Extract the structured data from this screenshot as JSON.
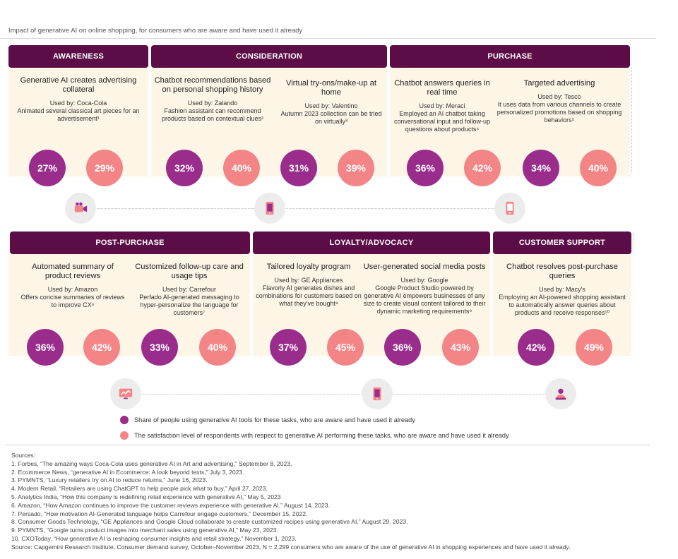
{
  "title": "Impact of generative AI on online shopping, for consumers who are aware and have used it already",
  "colors": {
    "header": "#5c0d47",
    "share": "#9a2d8c",
    "satisfaction": "#f48587",
    "band": "#fdf5e6"
  },
  "stages": [
    {
      "label": "AWARENESS"
    },
    {
      "label": "CONSIDERATION"
    },
    {
      "label": "PURCHASE"
    },
    {
      "label": "POST-PURCHASE"
    },
    {
      "label": "LOYALTY/ADVOCACY"
    },
    {
      "label": "CUSTOMER SUPPORT"
    }
  ],
  "cards": [
    {
      "title": "Generative AI creates advertising collateral",
      "used_by": "Used by: Coca-Cola",
      "desc": "Animated several classical art pieces for an advertisement¹",
      "share": "27%",
      "satisfaction": "29%"
    },
    {
      "title": "Chatbot recommendations based on personal shopping history",
      "used_by": "Used by: Zalando",
      "desc": "Fashion assistant can recommend products based on contextual clues²",
      "share": "32%",
      "satisfaction": "40%"
    },
    {
      "title": "Virtual try-ons/make-up at home",
      "used_by": "Used by: Valentino",
      "desc": "Autumn 2023 collection can be tried on virtually³",
      "share": "31%",
      "satisfaction": "39%"
    },
    {
      "title": "Chatbot answers queries in real time",
      "used_by": "Used by: Meraci",
      "desc": "Employed an AI chatbot taking conversational input and follow-up questions about products⁴",
      "share": "36%",
      "satisfaction": "42%"
    },
    {
      "title": "Targeted advertising",
      "used_by": "Used by: Tesco",
      "desc": "It uses data from various channels to create personalized promotions based on shopping behaviors⁵",
      "share": "34%",
      "satisfaction": "40%"
    },
    {
      "title": "Automated summary of product reviews",
      "used_by": "Used by: Amazon",
      "desc": "Offers concise summaries of reviews to improve CX⁶",
      "share": "36%",
      "satisfaction": "42%"
    },
    {
      "title": "Customized follow-up care and usage tips",
      "used_by": "Used by: Carrefour",
      "desc": "Perfado AI-generated messaging to hyper-personalize the language for customers⁷",
      "share": "33%",
      "satisfaction": "40%"
    },
    {
      "title": "Tailored loyalty program",
      "used_by": "Used by: GE Appliances",
      "desc": "Flavorly AI generates dishes and combinations for customers based on what they've bought⁸",
      "share": "37%",
      "satisfaction": "45%"
    },
    {
      "title": "User-generated social media posts",
      "used_by": "Used by: Google",
      "desc": "Google Product Studio powered by generative AI empowers businesses of any size to create visual content tailored to their dynamic marketing requirements⁹",
      "share": "36%",
      "satisfaction": "43%"
    },
    {
      "title": "Chatbot resolves post-purchase queries",
      "used_by": "Used by: Macy's",
      "desc": "Employing an AI-powered shopping assistant to automatically answer queries about products and receive responses¹⁰",
      "share": "42%",
      "satisfaction": "49%"
    }
  ],
  "chart_data": {
    "type": "bar",
    "categories": [
      "Generative AI creates advertising collateral",
      "Chatbot recommendations based on personal shopping history",
      "Virtual try-ons/make-up at home",
      "Chatbot answers queries in real time",
      "Targeted advertising",
      "Automated summary of product reviews",
      "Customized follow-up care and usage tips",
      "Tailored loyalty program",
      "User-generated social media posts",
      "Chatbot resolves post-purchase queries"
    ],
    "series": [
      {
        "name": "Share of people using generative AI tools for these tasks, who are aware and have used it already",
        "values": [
          27,
          32,
          31,
          36,
          34,
          36,
          33,
          37,
          36,
          42
        ]
      },
      {
        "name": "The satisfaction level of respondents with respect to generative AI performing these tasks, who are aware and have used it already",
        "values": [
          29,
          40,
          39,
          42,
          40,
          42,
          40,
          45,
          43,
          49
        ]
      }
    ],
    "title": "Impact of generative AI on online shopping, for consumers who are aware and have used it already"
  },
  "icons": [
    "video-camera-icon",
    "mobile-phone-icon",
    "smartphone-icon",
    "monitor-chart-icon",
    "mobile-phone-icon",
    "customer-agent-icon"
  ],
  "legend": {
    "share": "Share of people using generative AI tools for these tasks, who are aware and have used it already",
    "satisfaction": "The satisfaction level of respondents with respect to generative AI performing these tasks, who are aware and have used it already"
  },
  "sources": [
    "Sources:",
    "1. Forbes, “The amazing ways Coca-Cola uses generative AI in Art and advertising,” September 8, 2023.",
    "2. Ecommerce News, “generative AI in Ecommerce: A look beyond texts,” July 3, 2023.",
    "3. PYMNTS, “Luxury retailers try on AI to reduce returns,” June 16, 2023.",
    "4. Modern Retail, “Retailers are using ChatGPT to help people pick what to buy,” April 27, 2023.",
    "5. Analytics India, “How this company is redefining retail experience with generative AI,” May 5, 2023",
    "6. Amazon, “How Amazon continues to improve the customer reviews experience with generative AI,” August 14, 2023.",
    "7. Persado, “How motivation AI-Generated language helps Carrefour engage customers,” December 15, 2022.",
    "8. Consumer Goods Technology, “GE Appliances and Google Cloud collaborate to create customized recipes using generative AI,” August 29, 2023.",
    "9. PYMNTS, “Google turns product images into merchant sales using generative AI,” May 23, 2023.",
    "10. CXOToday, “How generative AI is reshaping consumer insights and retail strategy,” November 1, 2023.",
    "Source: Capgemini Research Institute, Consumer demand survey, October–November 2023, N = 2,299 consumers who are aware of the use of generative AI in shopping experiences and have used it already."
  ]
}
